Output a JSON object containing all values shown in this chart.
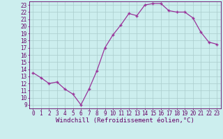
{
  "x": [
    0,
    1,
    2,
    3,
    4,
    5,
    6,
    7,
    8,
    9,
    10,
    11,
    12,
    13,
    14,
    15,
    16,
    17,
    18,
    19,
    20,
    21,
    22,
    23
  ],
  "y": [
    13.5,
    12.8,
    12.0,
    12.2,
    11.2,
    10.5,
    9.0,
    11.2,
    13.8,
    17.0,
    18.8,
    20.2,
    21.8,
    21.5,
    23.0,
    23.2,
    23.2,
    22.2,
    22.0,
    22.0,
    21.2,
    19.2,
    17.8,
    17.5
  ],
  "line_color": "#993399",
  "marker": "+",
  "marker_size": 3,
  "linewidth": 0.9,
  "bg_color": "#cceeee",
  "grid_color": "#aacccc",
  "xlabel": "Windchill (Refroidissement éolien,°C)",
  "ylim": [
    8.5,
    23.5
  ],
  "xlim": [
    -0.5,
    23.5
  ],
  "yticks": [
    9,
    10,
    11,
    12,
    13,
    14,
    15,
    16,
    17,
    18,
    19,
    20,
    21,
    22,
    23
  ],
  "xticks": [
    0,
    1,
    2,
    3,
    4,
    5,
    6,
    7,
    8,
    9,
    10,
    11,
    12,
    13,
    14,
    15,
    16,
    17,
    18,
    19,
    20,
    21,
    22,
    23
  ],
  "tick_fontsize": 5.5,
  "label_fontsize": 6.5,
  "tick_color": "#660066",
  "label_color": "#660066",
  "markeredgewidth": 1.0
}
